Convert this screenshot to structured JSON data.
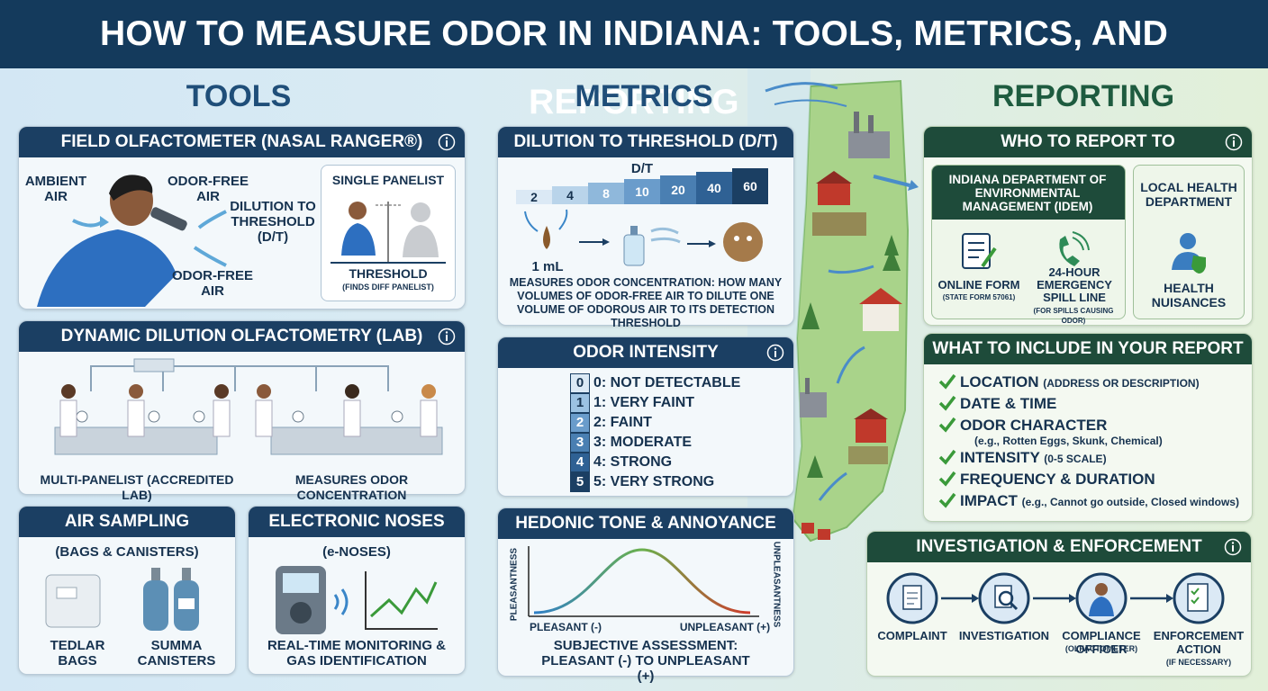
{
  "header": {
    "title": "HOW TO MEASURE ODOR IN INDIANA: TOOLS, METRICS, AND REPORTING"
  },
  "tools": {
    "heading": "TOOLS",
    "field_olfactometer": {
      "title": "FIELD OLFACTOMETER (NASAL RANGER®)",
      "labels": [
        "AMBIENT AIR",
        "ODOR-FREE AIR",
        "DILUTION TO THRESHOLD (D/T)",
        "ODOR-FREE AIR"
      ],
      "inset_title": "SINGLE PANELIST",
      "inset_label": "THRESHOLD",
      "inset_note": "(FINDS DIFF PANELIST)"
    },
    "dynamic_dilution": {
      "title": "DYNAMIC DILUTION OLFACTOMETRY (LAB)",
      "captions": [
        "MULTI-PANELIST (ACCREDITED LAB)",
        "MEASURES ODOR CONCENTRATION"
      ]
    },
    "air_sampling": {
      "title": "AIR SAMPLING",
      "subtitle": "(BAGS & CANISTERS)",
      "items": [
        "TEDLAR BAGS",
        "SUMMA CANISTERS"
      ]
    },
    "electronic_noses": {
      "title": "ELECTRONIC NOSES",
      "subtitle": "(e-NOSES)",
      "caption": "REAL-TIME MONITORING & GAS IDENTIFICATION"
    }
  },
  "metrics": {
    "heading": "METRICS",
    "dilution": {
      "title": "DILUTION TO THRESHOLD (D/T)",
      "scale_label": "D/T",
      "scale": [
        2,
        4,
        8,
        10,
        20,
        40,
        60
      ],
      "volume": "1 mL",
      "description": "MEASURES ODOR CONCENTRATION: HOW MANY VOLUMES OF ODOR-FREE AIR TO DILUTE ONE VOLUME OF ODOROUS AIR TO ITS DETECTION THRESHOLD"
    },
    "intensity": {
      "title": "ODOR INTENSITY",
      "levels": [
        {
          "level": 0,
          "label": "0: NOT DETECTABLE"
        },
        {
          "level": 1,
          "label": "1: VERY FAINT"
        },
        {
          "level": 2,
          "label": "2: FAINT"
        },
        {
          "level": 3,
          "label": "3: MODERATE"
        },
        {
          "level": 4,
          "label": "4: STRONG"
        },
        {
          "level": 5,
          "label": "5: VERY STRONG"
        }
      ]
    },
    "hedonic": {
      "title": "HEDONIC TONE & ANNOYANCE",
      "y_left": "PLEASANTNESS",
      "y_right": "UNPLEASANTNESS",
      "x_left": "PLEASANT (-)",
      "x_right": "UNPLEASANT (+)",
      "caption": "SUBJECTIVE ASSESSMENT: PLEASANT (-) TO UNPLEASANT (+)"
    }
  },
  "reporting": {
    "heading": "REPORTING",
    "who": {
      "title": "WHO TO REPORT TO",
      "idem": {
        "name": "INDIANA DEPARTMENT OF ENVIRONMENTAL MANAGEMENT (IDEM)",
        "channels": [
          {
            "label": "ONLINE FORM",
            "note": "(STATE FORM 57061)"
          },
          {
            "label": "24-HOUR EMERGENCY SPILL LINE",
            "note": "(FOR SPILLS CAUSING ODOR)"
          }
        ]
      },
      "local": {
        "name": "LOCAL HEALTH DEPARTMENT",
        "channel": "HEALTH NUISANCES"
      }
    },
    "include": {
      "title": "WHAT TO INCLUDE IN YOUR REPORT",
      "items": [
        {
          "label": "LOCATION",
          "detail": "(ADDRESS OR DESCRIPTION)"
        },
        {
          "label": "DATE & TIME"
        },
        {
          "label": "ODOR CHARACTER",
          "detail": "(e.g., Rotten Eggs, Skunk, Chemical)"
        },
        {
          "label": "INTENSITY",
          "detail": "(0-5 SCALE)"
        },
        {
          "label": "FREQUENCY & DURATION"
        },
        {
          "label": "IMPACT",
          "detail": "(e.g., Cannot go outside, Closed windows)"
        }
      ]
    },
    "enforcement": {
      "title": "INVESTIGATION & ENFORCEMENT",
      "steps": [
        {
          "label": "COMPLAINT"
        },
        {
          "label": "INVESTIGATION"
        },
        {
          "label": "COMPLIANCE OFFICER",
          "note": "(OLFACTOMETER)"
        },
        {
          "label": "ENFORCEMENT ACTION",
          "note": "(IF NECESSARY)"
        }
      ]
    }
  }
}
